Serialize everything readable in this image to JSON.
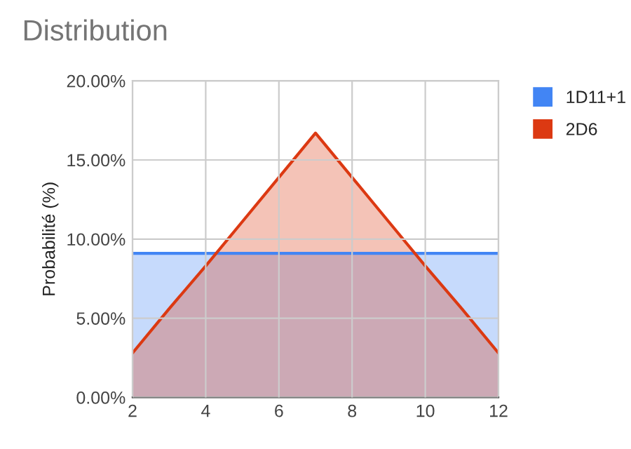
{
  "chart_data": {
    "type": "area",
    "title": "Distribution",
    "ylabel": "Probabilité (%)",
    "x": [
      2,
      3,
      4,
      5,
      6,
      7,
      8,
      9,
      10,
      11,
      12
    ],
    "series": [
      {
        "name": "1D11+1",
        "color": "#4285f4",
        "values": [
          9.1,
          9.1,
          9.1,
          9.1,
          9.1,
          9.1,
          9.1,
          9.1,
          9.1,
          9.1,
          9.1
        ]
      },
      {
        "name": "2D6",
        "color": "#dc3912",
        "values": [
          2.8,
          5.6,
          8.3,
          11.1,
          13.9,
          16.7,
          13.9,
          11.1,
          8.3,
          5.6,
          2.8
        ]
      }
    ],
    "xlim": [
      2,
      12
    ],
    "xticks": [
      2,
      4,
      6,
      8,
      10,
      12
    ],
    "ylim": [
      0,
      20
    ],
    "yticks": [
      {
        "value": 0,
        "label": "0.00%"
      },
      {
        "value": 5,
        "label": "5.00%"
      },
      {
        "value": 10,
        "label": "10.00%"
      },
      {
        "value": 15,
        "label": "15.00%"
      },
      {
        "value": 20,
        "label": "20.00%"
      }
    ],
    "grid": true,
    "legend": "right"
  }
}
